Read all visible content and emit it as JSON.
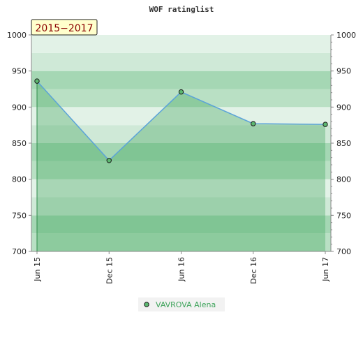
{
  "chart_data": {
    "type": "line",
    "title": "WOF ratinglist",
    "period_badge": "2015−2017",
    "x_categories": [
      "Jun 15",
      "Dec 15",
      "Jun 16",
      "Dec 16",
      "Jun 17"
    ],
    "series": [
      {
        "name": "VAVROVA Alena",
        "values": [
          936,
          826,
          921,
          877,
          876
        ]
      }
    ],
    "ylim": [
      700,
      1000
    ],
    "y_ticks": [
      700,
      750,
      800,
      850,
      900,
      950,
      1000
    ],
    "y_axis_left": true,
    "y_axis_right": true,
    "legend_position": "bottom-center",
    "colors": {
      "line": "#5ba3d9",
      "area": "#3da35a",
      "marker": "#5cb870",
      "band_dark": "#7fc795",
      "band_light": "#e8f5ec",
      "badge_bg": "#ffffcc",
      "badge_text": "#8b0000",
      "legend_text": "#3da35a"
    }
  }
}
